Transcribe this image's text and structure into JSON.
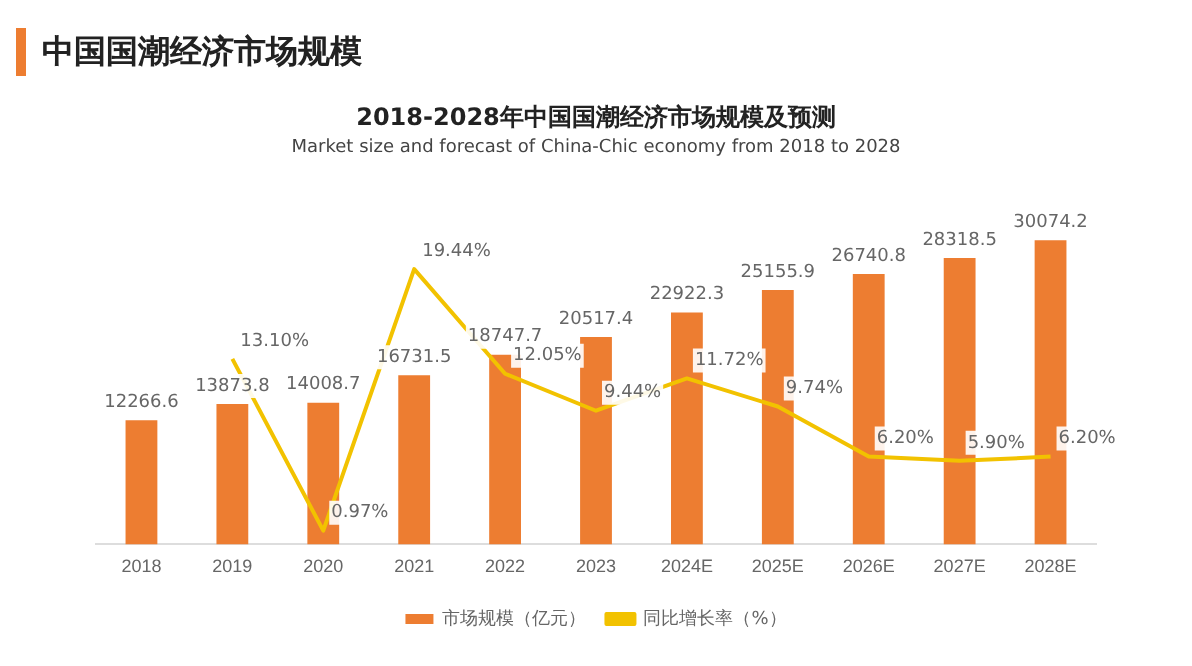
{
  "chart_data": {
    "type": "bar",
    "title": "2018-2028年中国国潮经济市场规模及预测",
    "subtitle": "Market size and forecast of China-Chic economy from 2018 to 2028",
    "annotations": [
      "中国国潮经济市场规模"
    ],
    "categories": [
      "2018",
      "2019",
      "2020",
      "2021",
      "2022",
      "2023",
      "2024E",
      "2025E",
      "2026E",
      "2027E",
      "2028E"
    ],
    "series": [
      {
        "name": "市场规模（亿元）",
        "color": "#ed7d31",
        "values": [
          12266.6,
          13873.8,
          14008.7,
          16731.5,
          18747.7,
          20517.4,
          22922.3,
          25155.9,
          26740.8,
          28318.5,
          30074.2
        ]
      },
      {
        "name": "同比增长率（%）",
        "type": "line",
        "axis": "y2",
        "color": "#f2c200",
        "values": [
          null,
          13.1,
          0.97,
          19.44,
          12.05,
          9.44,
          11.72,
          9.74,
          6.2,
          5.9,
          6.2
        ],
        "value_labels": [
          null,
          "13.10%",
          "0.97%",
          "19.44%",
          "12.05%",
          "9.44%",
          "11.72%",
          "9.74%",
          "6.20%",
          "5.90%",
          "6.20%"
        ]
      }
    ],
    "data_labels": true,
    "legend": "bottom",
    "grid": false,
    "marker": "none"
  }
}
